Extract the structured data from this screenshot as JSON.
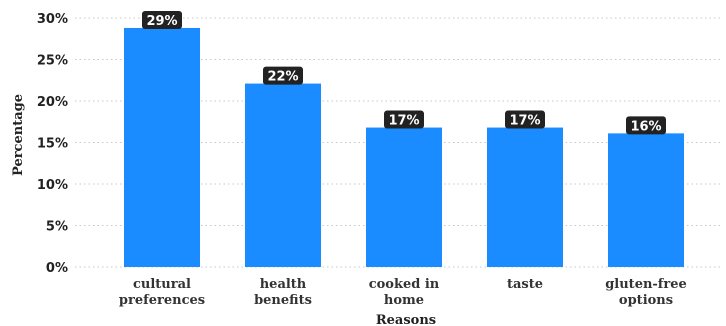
{
  "chart_data": {
    "type": "bar",
    "title": "",
    "xlabel": "Reasons",
    "ylabel": "Percentage",
    "categories": [
      [
        "cultural",
        "preferences"
      ],
      [
        "health",
        "benefits"
      ],
      [
        "cooked in",
        "home"
      ],
      [
        "taste"
      ],
      [
        "gluten-free",
        "options"
      ]
    ],
    "values": [
      28.8,
      22.1,
      16.8,
      16.8,
      16.1
    ],
    "data_labels": [
      "29%",
      "22%",
      "17%",
      "17%",
      "16%"
    ],
    "ylim": [
      0,
      30
    ],
    "yticks": [
      0,
      5,
      10,
      15,
      20,
      25,
      30
    ],
    "ytick_labels": [
      "0%",
      "5%",
      "10%",
      "15%",
      "20%",
      "25%",
      "30%"
    ],
    "grid": true,
    "legend": "none",
    "colors": {
      "bar": "#1a8cff",
      "label_bg": "#222222",
      "label_text": "#ffffff",
      "grid": "#c8c8c8"
    }
  }
}
